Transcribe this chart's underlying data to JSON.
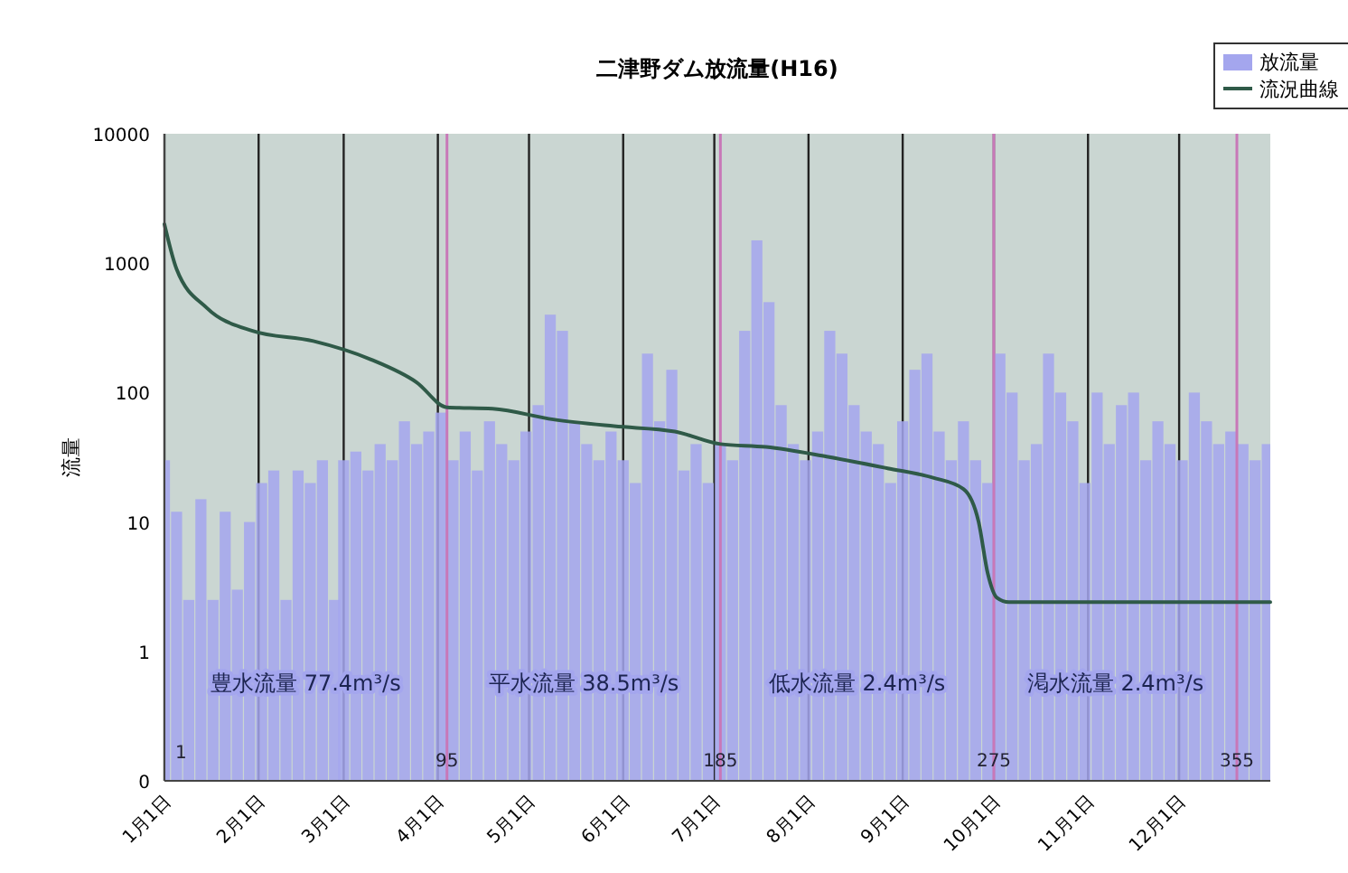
{
  "chart_data": {
    "type": "bar",
    "title": "二津野ダム放流量(H16)",
    "ylabel": "流量",
    "log": "y",
    "ylim": [
      0.1,
      10000
    ],
    "yticks": [
      {
        "value": 0.1,
        "label": "0"
      },
      1,
      10,
      100,
      1000,
      10000
    ],
    "xlim": [
      "--01-01",
      "--12-31"
    ],
    "xticks": [
      {
        "value": "--01-01",
        "label": "1月1日"
      },
      {
        "value": "--02-01",
        "label": "2月1日"
      },
      {
        "value": "--03-01",
        "label": "3月1日"
      },
      {
        "value": "--04-01",
        "label": "4月1日"
      },
      {
        "value": "--05-01",
        "label": "5月1日"
      },
      {
        "value": "--06-01",
        "label": "6月1日"
      },
      {
        "value": "--07-01",
        "label": "7月1日"
      },
      {
        "value": "--08-01",
        "label": "8月1日"
      },
      {
        "value": "--09-01",
        "label": "9月1日"
      },
      {
        "value": "--10-01",
        "label": "10月1日"
      },
      {
        "value": "--11-01",
        "label": "11月1日"
      },
      {
        "value": "--12-01",
        "label": "12月1日"
      }
    ],
    "grid": "x",
    "legend": "top right",
    "series": [
      {
        "name": "放流量",
        "color": "#a4a6ee",
        "x": [
          "--01-01",
          "--01-05",
          "--01-09",
          "--01-13",
          "--01-17",
          "--01-21",
          "--01-25",
          "--01-29",
          "--02-02",
          "--02-06",
          "--02-10",
          "--02-14",
          "--02-18",
          "--02-22",
          "--02-26",
          "--03-01",
          "--03-05",
          "--03-09",
          "--03-13",
          "--03-17",
          "--03-21",
          "--03-25",
          "--03-29",
          "--04-02",
          "--04-06",
          "--04-10",
          "--04-14",
          "--04-18",
          "--04-22",
          "--04-26",
          "--04-30",
          "--05-04",
          "--05-08",
          "--05-12",
          "--05-16",
          "--05-20",
          "--05-24",
          "--05-28",
          "--06-01",
          "--06-05",
          "--06-09",
          "--06-13",
          "--06-17",
          "--06-21",
          "--06-25",
          "--06-29",
          "--07-03",
          "--07-07",
          "--07-11",
          "--07-15",
          "--07-19",
          "--07-23",
          "--07-27",
          "--07-31",
          "--08-04",
          "--08-08",
          "--08-12",
          "--08-16",
          "--08-20",
          "--08-24",
          "--08-28",
          "--09-01",
          "--09-05",
          "--09-09",
          "--09-13",
          "--09-17",
          "--09-21",
          "--09-25",
          "--09-29",
          "--10-03",
          "--10-07",
          "--10-11",
          "--10-15",
          "--10-19",
          "--10-23",
          "--10-27",
          "--10-31",
          "--11-04",
          "--11-08",
          "--11-12",
          "--11-16",
          "--11-20",
          "--11-24",
          "--11-28",
          "--12-02",
          "--12-06",
          "--12-10",
          "--12-14",
          "--12-18",
          "--12-22",
          "--12-26",
          "--12-30"
        ],
        "values": [
          30,
          12,
          2.5,
          15,
          2.5,
          12,
          3,
          10,
          20,
          25,
          2.5,
          25,
          20,
          30,
          2.5,
          30,
          35,
          25,
          40,
          30,
          60,
          40,
          50,
          70,
          30,
          50,
          25,
          60,
          40,
          30,
          50,
          80,
          400,
          300,
          60,
          40,
          30,
          50,
          30,
          20,
          200,
          60,
          150,
          25,
          40,
          20,
          40,
          30,
          300,
          1500,
          500,
          80,
          40,
          30,
          50,
          300,
          200,
          80,
          50,
          40,
          20,
          60,
          150,
          200,
          50,
          30,
          60,
          30,
          20,
          200,
          100,
          30,
          40,
          200,
          100,
          60,
          20,
          100,
          40,
          80,
          100,
          30,
          60,
          40,
          30,
          100,
          60,
          40,
          50,
          40,
          30,
          40
        ]
      },
      {
        "name": "流況曲線",
        "type": "line",
        "color": "#2f5a48",
        "x": [
          "--01-01",
          "--01-05",
          "--01-15",
          "--01-30",
          "--02-19",
          "--03-10",
          "--03-25",
          "--04-04",
          "--04-19",
          "--05-09",
          "--05-29",
          "--06-18",
          "--07-03",
          "--07-18",
          "--08-07",
          "--08-27",
          "--09-11",
          "--09-21",
          "--09-26",
          "--09-29",
          "--10-02",
          "--10-06",
          "--12-31"
        ],
        "values": [
          2000,
          900,
          450,
          300,
          250,
          180,
          120,
          77,
          75,
          62,
          55,
          50,
          40,
          38,
          32,
          26,
          22,
          18,
          10,
          4,
          2.6,
          2.4,
          2.4
        ]
      }
    ],
    "ref_lines": [
      {
        "axis": "x",
        "value": "--04-04",
        "label": "95",
        "color": "#c878b8"
      },
      {
        "axis": "x",
        "value": "--07-03",
        "label": "185",
        "color": "#c878b8"
      },
      {
        "axis": "x",
        "value": "--10-01",
        "label": "275",
        "color": "#c878b8"
      },
      {
        "axis": "x",
        "value": "--12-20",
        "label": "355",
        "color": "#c878b8"
      }
    ],
    "annotations": [
      "豊水流量 77.4m³/s",
      "平水流量 38.5m³/s",
      "低水流量 2.4m³/s",
      "渇水流量 2.4m³/s",
      {
        "text": "1",
        "x": "--01-01",
        "y": 0.15
      }
    ]
  }
}
